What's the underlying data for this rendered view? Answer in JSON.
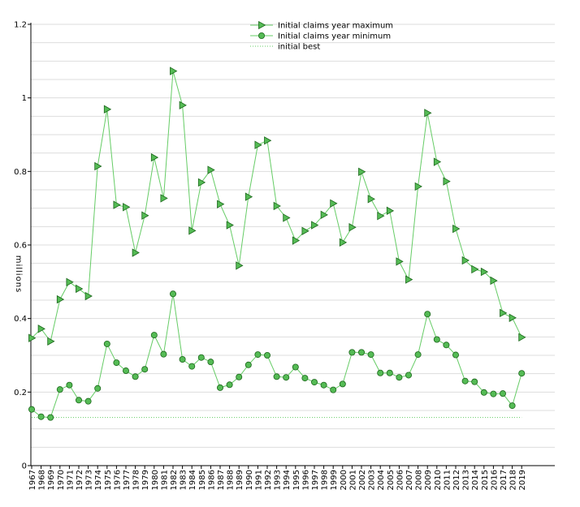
{
  "chart_data": {
    "type": "line",
    "title": "",
    "xlabel": "",
    "ylabel": "millions",
    "ylim": [
      0,
      1.2
    ],
    "y_ticks": [
      0,
      0.2,
      0.4,
      0.6,
      0.8,
      1,
      1.2
    ],
    "y_tick_labels": [
      "0",
      "0.2",
      "0.4",
      "0.6",
      "0.8",
      "1",
      "1.2"
    ],
    "grid": "horizontal",
    "legend_position": "top-center",
    "colors": {
      "line": "#66cc66",
      "marker_fill": "#55bb55",
      "marker_stroke": "#1a661a",
      "grid": "#dddddd",
      "axis": "#000000"
    },
    "categories": [
      "1967",
      "1968",
      "1969",
      "1970",
      "1971",
      "1972",
      "1973",
      "1974",
      "1975",
      "1976",
      "1977",
      "1978",
      "1979",
      "1980",
      "1981",
      "1982",
      "1983",
      "1984",
      "1985",
      "1986",
      "1987",
      "1988",
      "1989",
      "1990",
      "1991",
      "1992",
      "1993",
      "1994",
      "1995",
      "1996",
      "1997",
      "1998",
      "1999",
      "2000",
      "2001",
      "2002",
      "2003",
      "2004",
      "2005",
      "2006",
      "2007",
      "2008",
      "2009",
      "2010",
      "2011",
      "2012",
      "2013",
      "2014",
      "2015",
      "2016",
      "2017",
      "2018",
      "2019"
    ],
    "series": [
      {
        "name": "Initial claims year maximum",
        "marker": "triangle-right",
        "values": [
          0.347,
          0.372,
          0.338,
          0.452,
          0.499,
          0.481,
          0.461,
          0.814,
          0.969,
          0.709,
          0.703,
          0.579,
          0.68,
          0.838,
          0.727,
          1.073,
          0.98,
          0.639,
          0.77,
          0.804,
          0.711,
          0.654,
          0.544,
          0.731,
          0.872,
          0.884,
          0.706,
          0.674,
          0.612,
          0.638,
          0.654,
          0.682,
          0.713,
          0.607,
          0.648,
          0.799,
          0.725,
          0.679,
          0.693,
          0.555,
          0.506,
          0.759,
          0.959,
          0.826,
          0.773,
          0.644,
          0.558,
          0.534,
          0.527,
          0.503,
          0.415,
          0.402,
          0.349
        ]
      },
      {
        "name": "Initial claims year minimum",
        "marker": "circle",
        "values": [
          0.153,
          0.133,
          0.131,
          0.207,
          0.219,
          0.178,
          0.175,
          0.21,
          0.331,
          0.28,
          0.258,
          0.242,
          0.262,
          0.355,
          0.303,
          0.467,
          0.289,
          0.27,
          0.294,
          0.282,
          0.212,
          0.22,
          0.241,
          0.274,
          0.302,
          0.3,
          0.242,
          0.24,
          0.268,
          0.238,
          0.227,
          0.219,
          0.206,
          0.222,
          0.308,
          0.308,
          0.302,
          0.252,
          0.252,
          0.24,
          0.246,
          0.302,
          0.412,
          0.343,
          0.328,
          0.301,
          0.23,
          0.228,
          0.199,
          0.195,
          0.196,
          0.163,
          0.251
        ]
      },
      {
        "name": "initial best",
        "marker": "none",
        "style": "dotted",
        "values": [
          0.131,
          0.131,
          0.131,
          0.131,
          0.131,
          0.131,
          0.131,
          0.131,
          0.131,
          0.131,
          0.131,
          0.131,
          0.131,
          0.131,
          0.131,
          0.131,
          0.131,
          0.131,
          0.131,
          0.131,
          0.131,
          0.131,
          0.131,
          0.131,
          0.131,
          0.131,
          0.131,
          0.131,
          0.131,
          0.131,
          0.131,
          0.131,
          0.131,
          0.131,
          0.131,
          0.131,
          0.131,
          0.131,
          0.131,
          0.131,
          0.131,
          0.131,
          0.131,
          0.131,
          0.131,
          0.131,
          0.131,
          0.131,
          0.131,
          0.131,
          0.131,
          0.131,
          0.131
        ]
      }
    ]
  }
}
